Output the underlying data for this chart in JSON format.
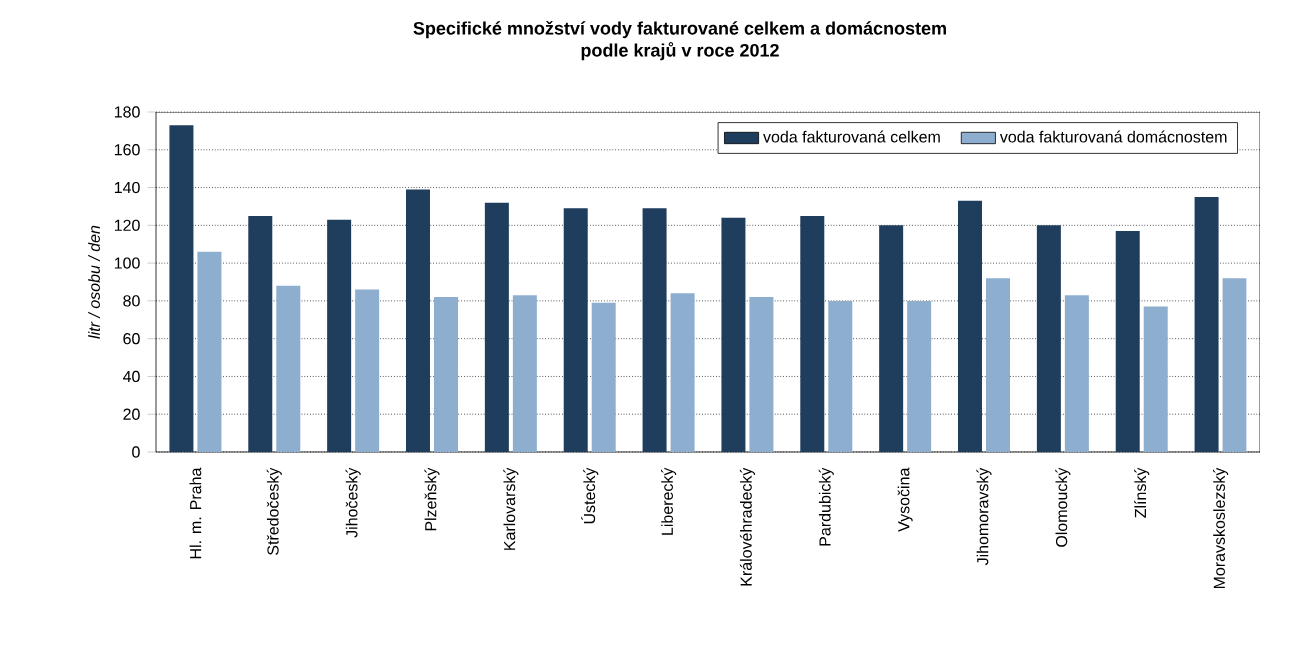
{
  "chart_data": {
    "type": "bar",
    "title": "Specifické množství vody fakturované  celkem a domácnostem\npodle krajů v roce 2012",
    "ylabel": "litr / osobu / den",
    "categories": [
      "Hl. m. Praha",
      "Středočeský",
      "Jihočeský",
      "Plzeňský",
      "Karlovarský",
      "Ústecký",
      "Liberecký",
      "Královéhradecký",
      "Pardubický",
      "Vysočina",
      "Jihomoravský",
      "Olomoucký",
      "Zlínský",
      "Moravskoslezský"
    ],
    "series": [
      {
        "name": "voda fakturovaná celkem",
        "color": "#1f3d5c",
        "values": [
          173,
          125,
          123,
          139,
          132,
          129,
          129,
          124,
          125,
          120,
          133,
          120,
          117,
          135
        ]
      },
      {
        "name": "voda fakturovaná domácnostem",
        "color": "#8eaecf",
        "values": [
          106,
          88,
          86,
          82,
          83,
          79,
          84,
          82,
          80,
          80,
          92,
          83,
          77,
          92
        ]
      }
    ],
    "ylim": [
      0,
      180
    ],
    "yticks": [
      0,
      20,
      40,
      60,
      80,
      100,
      120,
      140,
      160,
      180
    ],
    "grid": "y",
    "legend": "top right"
  }
}
